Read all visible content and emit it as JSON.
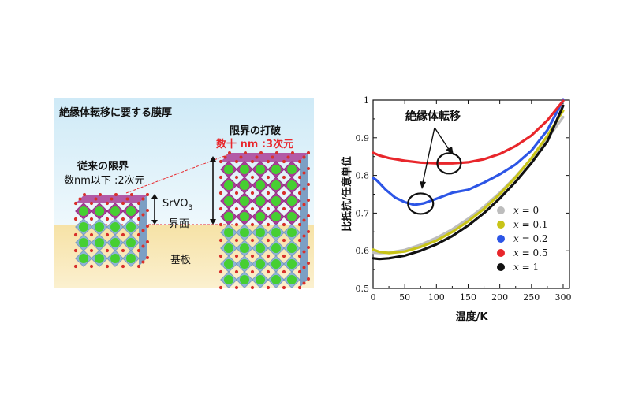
{
  "illustration": {
    "title": "絶縁体転移に要する膜厚",
    "breakthrough_label": "限界の打破",
    "breakthrough_value": "数十 nm :3次元",
    "conventional_label": "従来の限界",
    "conventional_value": "数nm以下 :2次元",
    "film_main": "SrVO",
    "film_sub": "3",
    "interface_label": "界面",
    "substrate_label": "基板",
    "colors": {
      "sky_top": "#d2ecf8",
      "sky_bottom": "#eaf6fb",
      "ground": "#f3dc9e",
      "accent_red": "#e8262b",
      "octahedron_blue": "#8eb3d6",
      "octahedron_purple": "#a93c97",
      "sr_green": "#46cf32",
      "oxygen_red": "#d8302b"
    }
  },
  "chart_data": {
    "type": "line",
    "title": "",
    "xlabel": "温度/K",
    "ylabel": "比抵抗/任意単位",
    "xlim": [
      0,
      310
    ],
    "ylim": [
      0.5,
      1.0
    ],
    "xticks": [
      0,
      50,
      100,
      150,
      200,
      250,
      300
    ],
    "yticks": [
      0.5,
      0.6,
      0.7,
      0.8,
      0.9,
      1.0
    ],
    "ytick_labels": [
      "0.5",
      "0.6",
      "0.7",
      "0.8",
      "0.9",
      "1"
    ],
    "annotation": "絶縁体転移",
    "legend_position": "lower-right",
    "series": [
      {
        "name": "x = 0",
        "prefix": "x",
        "suffix": " = 0",
        "color": "#bdbdbd",
        "x": [
          0,
          10,
          25,
          50,
          75,
          100,
          125,
          150,
          175,
          200,
          225,
          250,
          275,
          300
        ],
        "y": [
          0.595,
          0.594,
          0.595,
          0.602,
          0.616,
          0.634,
          0.657,
          0.685,
          0.717,
          0.754,
          0.797,
          0.845,
          0.897,
          0.955
        ]
      },
      {
        "name": "x = 0.1",
        "prefix": "x",
        "suffix": " = 0.1",
        "color": "#c8c418",
        "x": [
          0,
          10,
          25,
          50,
          75,
          100,
          125,
          150,
          175,
          200,
          225,
          250,
          275,
          300
        ],
        "y": [
          0.603,
          0.597,
          0.594,
          0.598,
          0.61,
          0.627,
          0.65,
          0.678,
          0.711,
          0.75,
          0.795,
          0.846,
          0.905,
          0.972
        ]
      },
      {
        "name": "x = 0.2",
        "prefix": "x",
        "suffix": " = 0.2",
        "color": "#2c55e6",
        "x": [
          0,
          5,
          10,
          20,
          35,
          50,
          65,
          80,
          100,
          125,
          150,
          175,
          200,
          225,
          250,
          275,
          300
        ],
        "y": [
          0.793,
          0.788,
          0.78,
          0.762,
          0.741,
          0.729,
          0.722,
          0.726,
          0.738,
          0.754,
          0.762,
          0.781,
          0.803,
          0.829,
          0.866,
          0.92,
          1.0
        ]
      },
      {
        "name": "x = 0.5",
        "prefix": "x",
        "suffix": " = 0.5",
        "color": "#e8262b",
        "x": [
          0,
          10,
          25,
          50,
          75,
          100,
          125,
          150,
          175,
          200,
          225,
          250,
          275,
          300
        ],
        "y": [
          0.86,
          0.853,
          0.846,
          0.839,
          0.834,
          0.832,
          0.832,
          0.835,
          0.843,
          0.857,
          0.878,
          0.906,
          0.946,
          0.998
        ]
      },
      {
        "name": "x = 1",
        "prefix": "x",
        "suffix": " = 1",
        "color": "#111111",
        "x": [
          0,
          10,
          25,
          50,
          75,
          100,
          125,
          150,
          175,
          200,
          225,
          250,
          275,
          300
        ],
        "y": [
          0.58,
          0.578,
          0.58,
          0.587,
          0.6,
          0.617,
          0.639,
          0.667,
          0.7,
          0.739,
          0.783,
          0.833,
          0.89,
          0.985
        ]
      }
    ],
    "circles": [
      {
        "x": 120,
        "y": 0.832,
        "rx": 15,
        "ry": 13
      },
      {
        "x": 75,
        "y": 0.725,
        "rx": 16,
        "ry": 13
      }
    ]
  }
}
